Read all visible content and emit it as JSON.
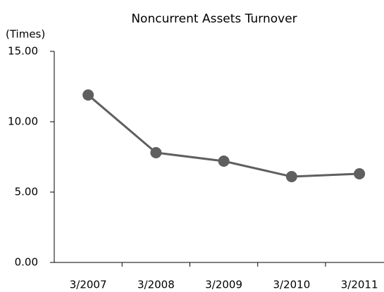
{
  "chart_data": {
    "type": "line",
    "title": "Noncurrent Assets Turnover",
    "y_label": "(Times)",
    "categories": [
      "3/2007",
      "3/2008",
      "3/2009",
      "3/2010",
      "3/2011"
    ],
    "series": [
      {
        "name": "Noncurrent Assets Turnover",
        "color": "#5f5f5f",
        "values": [
          11.9,
          7.8,
          7.2,
          6.1,
          6.3
        ]
      }
    ],
    "ylim": [
      0,
      15
    ],
    "yticks": [
      {
        "value": 0,
        "label": "0.00"
      },
      {
        "value": 5,
        "label": "5.00"
      },
      {
        "value": 10,
        "label": "10.00"
      },
      {
        "value": 15,
        "label": "15.00"
      }
    ],
    "grid": false
  }
}
